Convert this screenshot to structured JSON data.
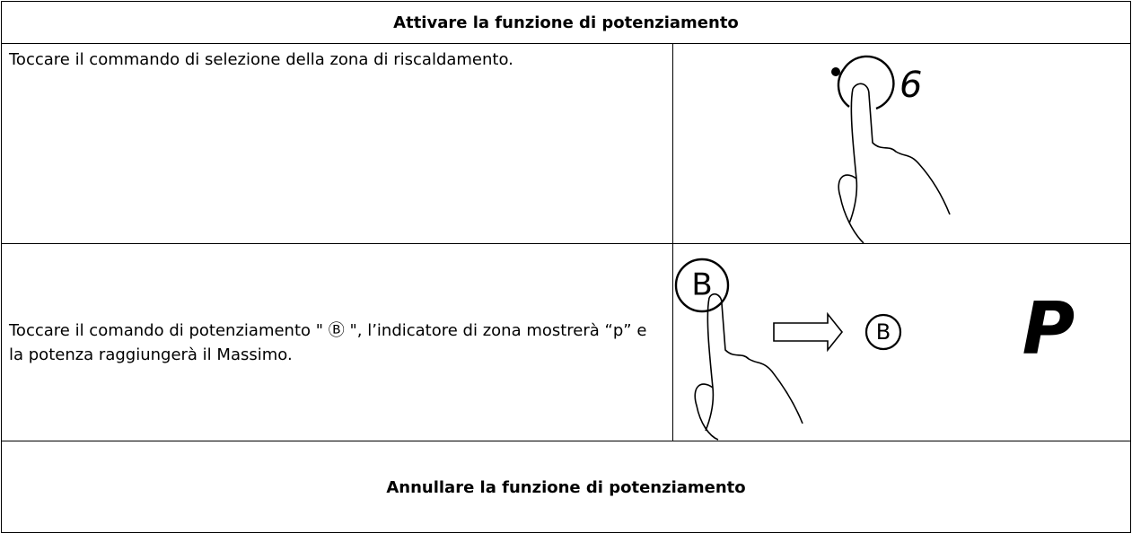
{
  "table": {
    "header": "Attivare la funzione di potenziamento",
    "rows": [
      {
        "text": "Toccare il commando di selezione della zona di riscaldamento.",
        "display": "6"
      },
      {
        "text": "Toccare il comando di potenziamento \" Ⓑ \", l’indicatore di zona mostrerà “p” e la potenza raggiungerà il Massimo.",
        "button": "B",
        "result_button": "B",
        "display": "P"
      }
    ],
    "footer": "Annullare la funzione di potenziamento"
  }
}
